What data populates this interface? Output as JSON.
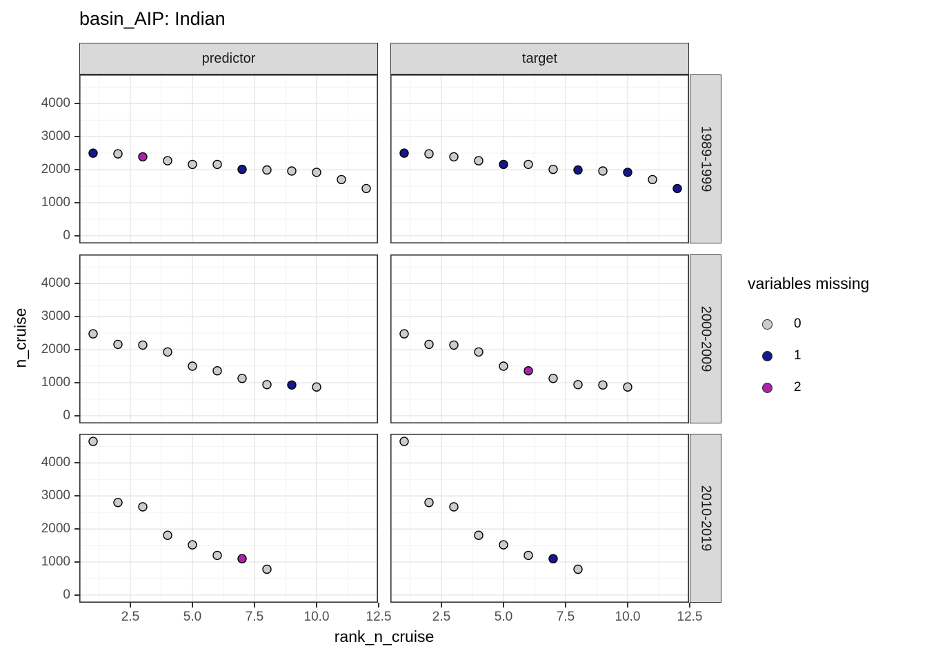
{
  "chart_data": {
    "type": "scatter",
    "title": "basin_AIP: Indian",
    "xlabel": "rank_n_cruise",
    "ylabel": "n_cruise",
    "x_ticks": [
      2.5,
      5.0,
      7.5,
      10.0,
      12.5
    ],
    "x_tick_labels": [
      "2.5",
      "5.0",
      "7.5",
      "10.0",
      "12.5"
    ],
    "y_ticks": [
      0,
      1000,
      2000,
      3000,
      4000
    ],
    "y_tick_labels": [
      "0",
      "1000",
      "2000",
      "3000",
      "4000"
    ],
    "x_domain": [
      0.44,
      12.47
    ],
    "y_domain": [
      -232.5,
      4882.5
    ],
    "grid": true,
    "col_facets": [
      "predictor",
      "target"
    ],
    "row_facets": [
      "1989-1999",
      "2000-2009",
      "2010-2019"
    ],
    "legend": {
      "title": "variables missing",
      "position": "right",
      "entries": [
        {
          "label": "0",
          "color": "#CCCCCC"
        },
        {
          "label": "1",
          "color": "#17178C"
        },
        {
          "label": "2",
          "color": "#A824A8"
        }
      ]
    },
    "point_outline": "#000000",
    "panels": [
      {
        "row": 0,
        "col": 0,
        "row_label": "1989-1999",
        "col_label": "predictor",
        "points": [
          {
            "rank": 1,
            "n_cruise": 2500,
            "missing": 1
          },
          {
            "rank": 2,
            "n_cruise": 2480,
            "missing": 0
          },
          {
            "rank": 3,
            "n_cruise": 2390,
            "missing": 2
          },
          {
            "rank": 4,
            "n_cruise": 2270,
            "missing": 0
          },
          {
            "rank": 5,
            "n_cruise": 2160,
            "missing": 0
          },
          {
            "rank": 6,
            "n_cruise": 2160,
            "missing": 0
          },
          {
            "rank": 7,
            "n_cruise": 2010,
            "missing": 1
          },
          {
            "rank": 8,
            "n_cruise": 1990,
            "missing": 0
          },
          {
            "rank": 9,
            "n_cruise": 1960,
            "missing": 0
          },
          {
            "rank": 10,
            "n_cruise": 1920,
            "missing": 0
          },
          {
            "rank": 11,
            "n_cruise": 1700,
            "missing": 0
          },
          {
            "rank": 12,
            "n_cruise": 1430,
            "missing": 0
          }
        ]
      },
      {
        "row": 0,
        "col": 1,
        "row_label": "1989-1999",
        "col_label": "target",
        "points": [
          {
            "rank": 1,
            "n_cruise": 2500,
            "missing": 1
          },
          {
            "rank": 2,
            "n_cruise": 2480,
            "missing": 0
          },
          {
            "rank": 3,
            "n_cruise": 2390,
            "missing": 0
          },
          {
            "rank": 4,
            "n_cruise": 2270,
            "missing": 0
          },
          {
            "rank": 5,
            "n_cruise": 2160,
            "missing": 1
          },
          {
            "rank": 6,
            "n_cruise": 2160,
            "missing": 0
          },
          {
            "rank": 7,
            "n_cruise": 2010,
            "missing": 0
          },
          {
            "rank": 8,
            "n_cruise": 1990,
            "missing": 1
          },
          {
            "rank": 9,
            "n_cruise": 1960,
            "missing": 0
          },
          {
            "rank": 10,
            "n_cruise": 1920,
            "missing": 1
          },
          {
            "rank": 11,
            "n_cruise": 1700,
            "missing": 0
          },
          {
            "rank": 12,
            "n_cruise": 1430,
            "missing": 1
          }
        ]
      },
      {
        "row": 1,
        "col": 0,
        "row_label": "2000-2009",
        "col_label": "predictor",
        "points": [
          {
            "rank": 1,
            "n_cruise": 2480,
            "missing": 0
          },
          {
            "rank": 2,
            "n_cruise": 2160,
            "missing": 0
          },
          {
            "rank": 3,
            "n_cruise": 2140,
            "missing": 0
          },
          {
            "rank": 4,
            "n_cruise": 1930,
            "missing": 0
          },
          {
            "rank": 5,
            "n_cruise": 1500,
            "missing": 0
          },
          {
            "rank": 6,
            "n_cruise": 1360,
            "missing": 0
          },
          {
            "rank": 7,
            "n_cruise": 1130,
            "missing": 0
          },
          {
            "rank": 8,
            "n_cruise": 940,
            "missing": 0
          },
          {
            "rank": 9,
            "n_cruise": 930,
            "missing": 1
          },
          {
            "rank": 10,
            "n_cruise": 870,
            "missing": 0
          }
        ]
      },
      {
        "row": 1,
        "col": 1,
        "row_label": "2000-2009",
        "col_label": "target",
        "points": [
          {
            "rank": 1,
            "n_cruise": 2480,
            "missing": 0
          },
          {
            "rank": 2,
            "n_cruise": 2160,
            "missing": 0
          },
          {
            "rank": 3,
            "n_cruise": 2140,
            "missing": 0
          },
          {
            "rank": 4,
            "n_cruise": 1930,
            "missing": 0
          },
          {
            "rank": 5,
            "n_cruise": 1500,
            "missing": 0
          },
          {
            "rank": 6,
            "n_cruise": 1360,
            "missing": 2
          },
          {
            "rank": 7,
            "n_cruise": 1130,
            "missing": 0
          },
          {
            "rank": 8,
            "n_cruise": 940,
            "missing": 0
          },
          {
            "rank": 9,
            "n_cruise": 930,
            "missing": 0
          },
          {
            "rank": 10,
            "n_cruise": 870,
            "missing": 0
          }
        ]
      },
      {
        "row": 2,
        "col": 0,
        "row_label": "2010-2019",
        "col_label": "predictor",
        "points": [
          {
            "rank": 1,
            "n_cruise": 4650,
            "missing": 0
          },
          {
            "rank": 2,
            "n_cruise": 2800,
            "missing": 0
          },
          {
            "rank": 3,
            "n_cruise": 2670,
            "missing": 0
          },
          {
            "rank": 4,
            "n_cruise": 1810,
            "missing": 0
          },
          {
            "rank": 5,
            "n_cruise": 1520,
            "missing": 0
          },
          {
            "rank": 6,
            "n_cruise": 1200,
            "missing": 0
          },
          {
            "rank": 7,
            "n_cruise": 1100,
            "missing": 2
          },
          {
            "rank": 8,
            "n_cruise": 780,
            "missing": 0
          }
        ]
      },
      {
        "row": 2,
        "col": 1,
        "row_label": "2010-2019",
        "col_label": "target",
        "points": [
          {
            "rank": 1,
            "n_cruise": 4650,
            "missing": 0
          },
          {
            "rank": 2,
            "n_cruise": 2800,
            "missing": 0
          },
          {
            "rank": 3,
            "n_cruise": 2670,
            "missing": 0
          },
          {
            "rank": 4,
            "n_cruise": 1810,
            "missing": 0
          },
          {
            "rank": 5,
            "n_cruise": 1520,
            "missing": 0
          },
          {
            "rank": 6,
            "n_cruise": 1200,
            "missing": 0
          },
          {
            "rank": 7,
            "n_cruise": 1100,
            "missing": 1
          },
          {
            "rank": 8,
            "n_cruise": 780,
            "missing": 0
          }
        ]
      }
    ]
  }
}
